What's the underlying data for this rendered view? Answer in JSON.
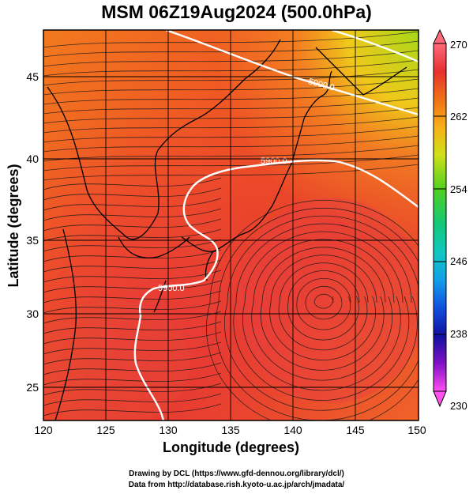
{
  "title": "MSM 06Z19Aug2024 (500.0hPa)",
  "x_axis": {
    "label": "Longitude (degrees)",
    "ticks": [
      "120",
      "125",
      "130",
      "135",
      "140",
      "145",
      "150"
    ]
  },
  "y_axis": {
    "label": "Latitude  (degrees)",
    "ticks": [
      "25",
      "30",
      "35",
      "40",
      "45"
    ]
  },
  "colorbar": {
    "ticks": [
      "270",
      "262",
      "254",
      "246",
      "238",
      "230"
    ],
    "colors": [
      "#ff7a8a",
      "#e83030",
      "#f26a1a",
      "#f7a61a",
      "#d8e01a",
      "#6ed81a",
      "#14c850",
      "#10c8a0",
      "#10a8e0",
      "#1060e0",
      "#1010b0",
      "#7010c0",
      "#d010c0",
      "#ff60ff"
    ]
  },
  "contour_labels": [
    "5900.0",
    "5900.0",
    "5900.0"
  ],
  "credits": {
    "line1": "Drawing by DCL (https://www.gfd-dennou.org/library/dcl/)",
    "line2": "Data from http://database.rish.kyoto-u.ac.jp/arch/jmadata/"
  }
}
